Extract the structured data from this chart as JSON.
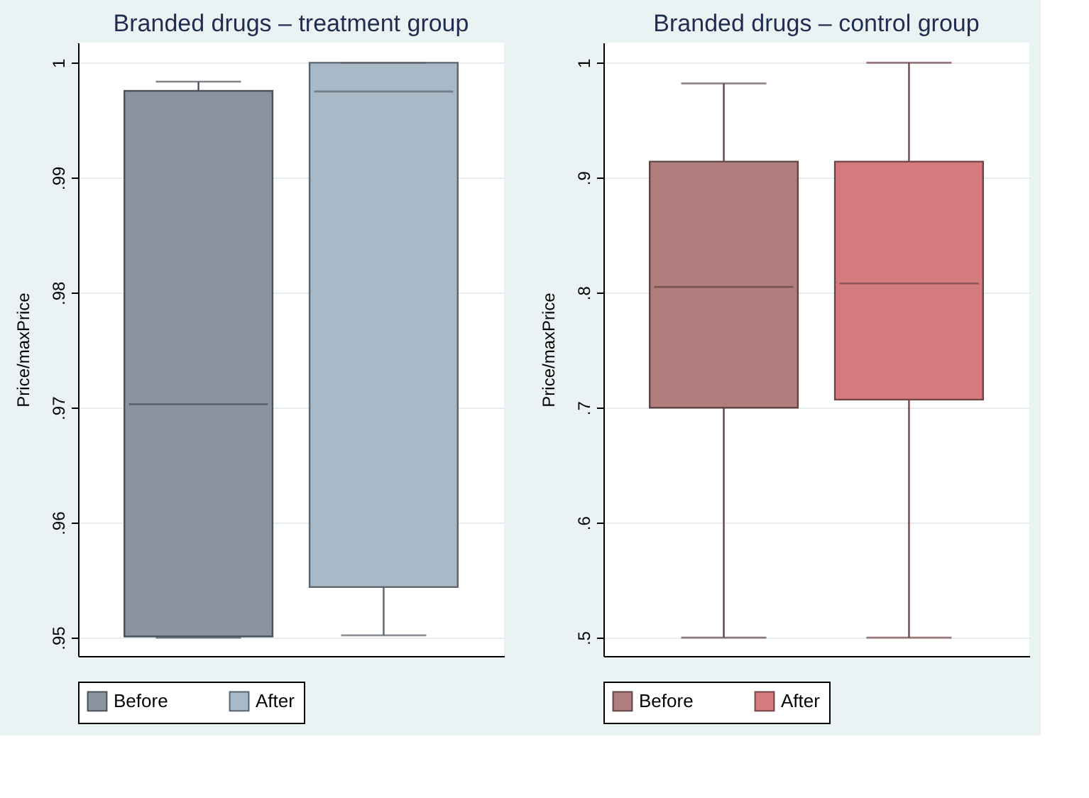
{
  "chart_data": [
    {
      "type": "box",
      "title": "Branded drugs – treatment group",
      "ylabel": "Price/maxPrice",
      "categories": [
        null
      ],
      "series": [
        {
          "name": "Before",
          "color": "#8a94a0",
          "boxes": [
            {
              "low": 0.95,
              "q1": 0.9501,
              "median": 0.9703,
              "q3": 0.99755,
              "high": 0.99835
            }
          ]
        },
        {
          "name": "After",
          "color": "#a8b9c8",
          "boxes": [
            {
              "low": 0.9502,
              "q1": 0.9544,
              "median": 0.9975,
              "q3": 1.0,
              "high": 1.0
            }
          ]
        }
      ],
      "ylim": [
        0.9484,
        1.00175
      ],
      "yticks": [
        {
          "value": 0.95,
          "label": ".95"
        },
        {
          "value": 0.96,
          "label": ".96"
        },
        {
          "value": 0.97,
          "label": ".97"
        },
        {
          "value": 0.98,
          "label": ".98"
        },
        {
          "value": 0.99,
          "label": ".99"
        },
        1
      ],
      "grid": "y",
      "legend": "bottom",
      "tick_labels": "y"
    },
    {
      "type": "box",
      "title": "Branded drugs – control group",
      "ylabel": "Price/maxPrice",
      "categories": [
        null
      ],
      "series": [
        {
          "name": "Before",
          "color": "#b07e7c",
          "boxes": [
            {
              "low": 0.5,
              "q1": 0.7,
              "median": 0.805,
              "q3": 0.914,
              "high": 0.982
            }
          ]
        },
        {
          "name": "After",
          "color": "#d47b7d",
          "boxes": [
            {
              "low": 0.5,
              "q1": 0.707,
              "median": 0.808,
              "q3": 0.914,
              "high": 1.0
            }
          ]
        }
      ],
      "ylim": [
        0.484,
        1.0175
      ],
      "yticks": [
        {
          "value": 0.5,
          "label": ".5"
        },
        {
          "value": 0.6,
          "label": ".6"
        },
        {
          "value": 0.7,
          "label": ".7"
        },
        {
          "value": 0.8,
          "label": ".8"
        },
        {
          "value": 0.9,
          "label": ".9"
        },
        1
      ],
      "grid": "y",
      "legend": "bottom",
      "tick_labels": "y"
    }
  ]
}
